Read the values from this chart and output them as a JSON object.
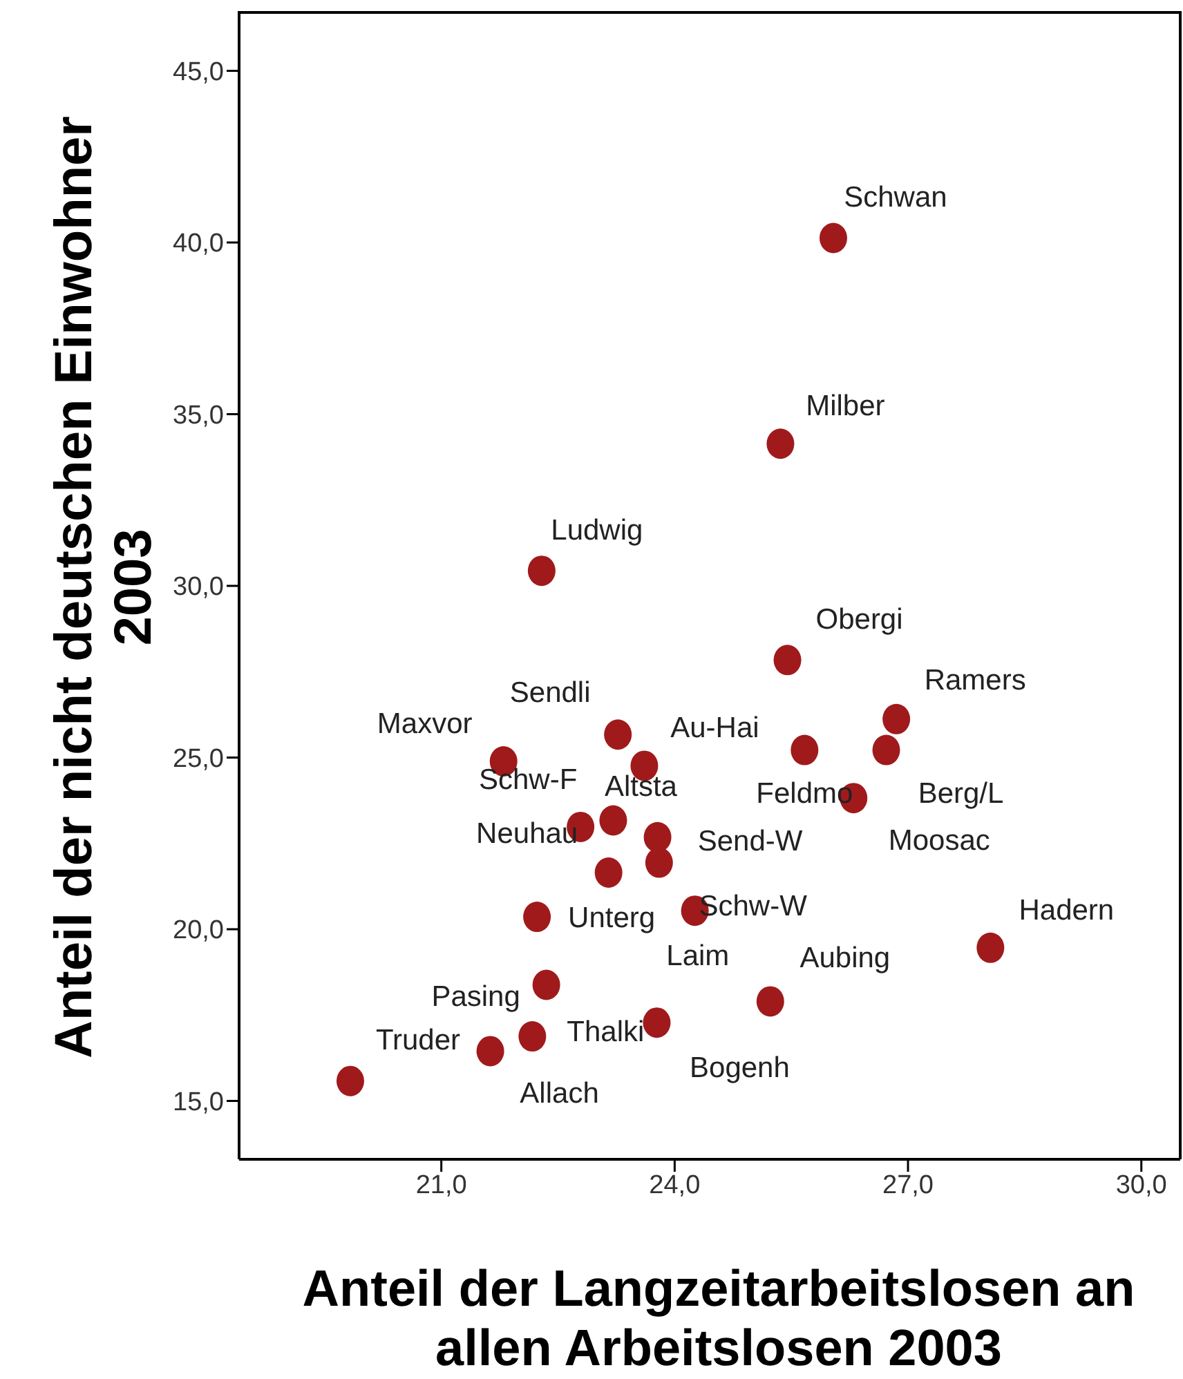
{
  "chart_data": {
    "type": "scatter",
    "xlabel": "Anteil der Langzeitarbeitslosen an allen Arbeitslosen 2003",
    "ylabel": "Anteil der nicht deutschen Einwohner 2003",
    "marker": "circle",
    "grid": false,
    "legend": false,
    "xlim": [
      18.4,
      30.5
    ],
    "ylim": [
      13.3,
      46.7
    ],
    "xticks": [
      {
        "value": 21,
        "label": "21,0"
      },
      {
        "value": 24,
        "label": "24,0"
      },
      {
        "value": 27,
        "label": "27,0"
      },
      {
        "value": 30,
        "label": "30,0"
      }
    ],
    "yticks": [
      {
        "value": 15,
        "label": "15,0"
      },
      {
        "value": 20,
        "label": "20,0"
      },
      {
        "value": 25,
        "label": "25,0"
      },
      {
        "value": 30,
        "label": "30,0"
      },
      {
        "value": 35,
        "label": "35,0"
      },
      {
        "value": 40,
        "label": "40,0"
      },
      {
        "value": 45,
        "label": "45,0"
      }
    ],
    "series": [
      {
        "color": "#a01a1c",
        "x": [
          26.04,
          25.36,
          22.29,
          23.27,
          21.8,
          23.61,
          23.21,
          22.79,
          23.78,
          23.8,
          23.15,
          22.23,
          24.26,
          22.35,
          22.17,
          21.63,
          23.77,
          19.83,
          25.45,
          26.85,
          25.67,
          26.72,
          26.3,
          28.06,
          25.23
        ],
        "values": [
          40.13,
          34.14,
          30.44,
          25.67,
          24.89,
          24.76,
          23.17,
          22.98,
          22.68,
          21.94,
          21.65,
          20.36,
          20.54,
          18.38,
          16.88,
          16.45,
          17.28,
          15.58,
          27.84,
          26.12,
          25.22,
          25.22,
          23.82,
          19.46,
          17.9
        ]
      }
    ],
    "annotations": [
      {
        "text": "Schwan",
        "x": 26.04,
        "y": 40.13
      },
      {
        "text": "Milber",
        "x": 25.36,
        "y": 34.14
      },
      {
        "text": "Ludwig",
        "x": 22.29,
        "y": 30.44
      },
      {
        "text": "Sendli",
        "x": 23.27,
        "y": 25.67
      },
      {
        "text": "Maxvor",
        "x": 21.8,
        "y": 24.89
      },
      {
        "text": "Au-Hai",
        "x": 23.61,
        "y": 24.76
      },
      {
        "text": "Altsta",
        "x": 23.21,
        "y": 23.17
      },
      {
        "text": "Schw-F",
        "x": 22.79,
        "y": 22.98
      },
      {
        "text": "Send-W",
        "x": 23.78,
        "y": 22.68
      },
      {
        "text": "Laim",
        "x": 23.8,
        "y": 21.94
      },
      {
        "text": "Neuhau",
        "x": 23.15,
        "y": 21.65
      },
      {
        "text": "Unterg",
        "x": 22.23,
        "y": 20.36
      },
      {
        "text": "Schw-W",
        "x": 24.26,
        "y": 20.54
      },
      {
        "text": "Pasing",
        "x": 22.35,
        "y": 18.38
      },
      {
        "text": "Thalki",
        "x": 22.17,
        "y": 16.88
      },
      {
        "text": "Allach",
        "x": 21.63,
        "y": 16.45
      },
      {
        "text": "Bogenh",
        "x": 23.77,
        "y": 17.28
      },
      {
        "text": "Truder",
        "x": 19.83,
        "y": 15.58
      },
      {
        "text": "Obergi",
        "x": 25.45,
        "y": 27.84
      },
      {
        "text": "Ramers",
        "x": 26.85,
        "y": 26.12
      },
      {
        "text": "Feldmo",
        "x": 25.67,
        "y": 25.22
      },
      {
        "text": "Berg/L",
        "x": 26.72,
        "y": 25.22
      },
      {
        "text": "Moosac",
        "x": 26.3,
        "y": 23.82
      },
      {
        "text": "Hadern",
        "x": 28.06,
        "y": 19.46
      },
      {
        "text": "Aubing",
        "x": 25.23,
        "y": 17.9
      }
    ]
  }
}
